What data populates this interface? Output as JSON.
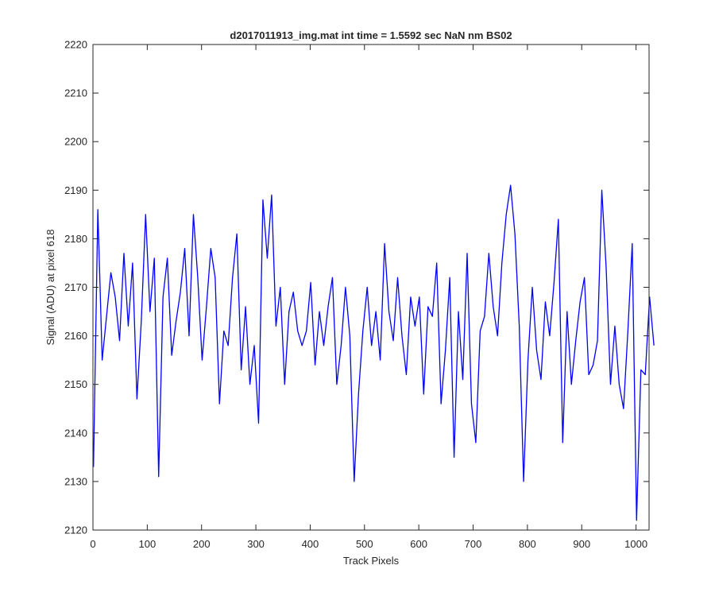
{
  "chart_data": {
    "type": "line",
    "title": "d2017011913_img.mat int time = 1.5592 sec  NaN nm BS02",
    "xlabel": "Track Pixels",
    "ylabel": "Signal (ADU) at pixel 618",
    "xlim": [
      0,
      1024
    ],
    "ylim": [
      2120,
      2220
    ],
    "xticks": [
      0,
      100,
      200,
      300,
      400,
      500,
      600,
      700,
      800,
      900,
      1000
    ],
    "yticks": [
      2120,
      2130,
      2140,
      2150,
      2160,
      2170,
      2180,
      2190,
      2200,
      2210,
      2220
    ],
    "grid": false,
    "box": true,
    "line_color": "#0000ff",
    "axis_color": "#262626",
    "series": [
      {
        "color": "#0000ff",
        "x_start": 1,
        "x_step": 8,
        "values": [
          2133,
          2186,
          2155,
          2164,
          2173,
          2168,
          2159,
          2177,
          2162,
          2175,
          2147,
          2163,
          2185,
          2165,
          2176,
          2131,
          2168,
          2176,
          2156,
          2163,
          2169,
          2178,
          2160,
          2185,
          2172,
          2155,
          2166,
          2178,
          2172,
          2146,
          2161,
          2158,
          2172,
          2181,
          2153,
          2166,
          2150,
          2158,
          2142,
          2188,
          2176,
          2189,
          2162,
          2170,
          2150,
          2165,
          2169,
          2161,
          2158,
          2161,
          2171,
          2154,
          2165,
          2158,
          2166,
          2172,
          2150,
          2158,
          2170,
          2160,
          2130,
          2148,
          2161,
          2170,
          2158,
          2165,
          2155,
          2179,
          2165,
          2159,
          2172,
          2160,
          2152,
          2168,
          2162,
          2168,
          2148,
          2166,
          2164,
          2175,
          2146,
          2157,
          2172,
          2135,
          2165,
          2151,
          2177,
          2146,
          2138,
          2161,
          2164,
          2177,
          2166,
          2160,
          2175,
          2185,
          2191,
          2181,
          2162,
          2130,
          2155,
          2170,
          2157,
          2151,
          2167,
          2160,
          2171,
          2184,
          2138,
          2165,
          2150,
          2159,
          2167,
          2172,
          2152,
          2154,
          2159,
          2190,
          2174,
          2150,
          2162,
          2150,
          2145,
          2161,
          2179,
          2122,
          2153,
          2152,
          2168,
          2158
        ]
      }
    ]
  }
}
